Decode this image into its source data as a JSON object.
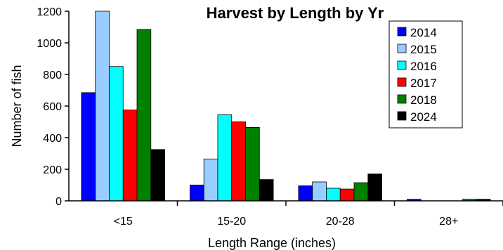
{
  "chart_data": {
    "type": "bar",
    "title": "Harvest by Length by Yr",
    "xlabel": "Length Range (inches)",
    "ylabel": "Number of fish",
    "categories": [
      "<15",
      "15-20",
      "20-28",
      "28+"
    ],
    "ylim": [
      0,
      1200
    ],
    "yticks": [
      0,
      200,
      400,
      600,
      800,
      1000,
      1200
    ],
    "legend_position": "top-right",
    "series": [
      {
        "name": "2014",
        "color": "#0000ff",
        "values": [
          685,
          100,
          95,
          10
        ]
      },
      {
        "name": "2015",
        "color": "#99ccff",
        "values": [
          1225,
          265,
          120,
          0
        ]
      },
      {
        "name": "2016",
        "color": "#00ffff",
        "values": [
          850,
          545,
          80,
          0
        ]
      },
      {
        "name": "2017",
        "color": "#ff0000",
        "values": [
          575,
          500,
          75,
          0
        ]
      },
      {
        "name": "2018",
        "color": "#008000",
        "values": [
          1085,
          465,
          115,
          10
        ]
      },
      {
        "name": "2024",
        "color": "#000000",
        "values": [
          325,
          135,
          170,
          10
        ]
      }
    ]
  }
}
